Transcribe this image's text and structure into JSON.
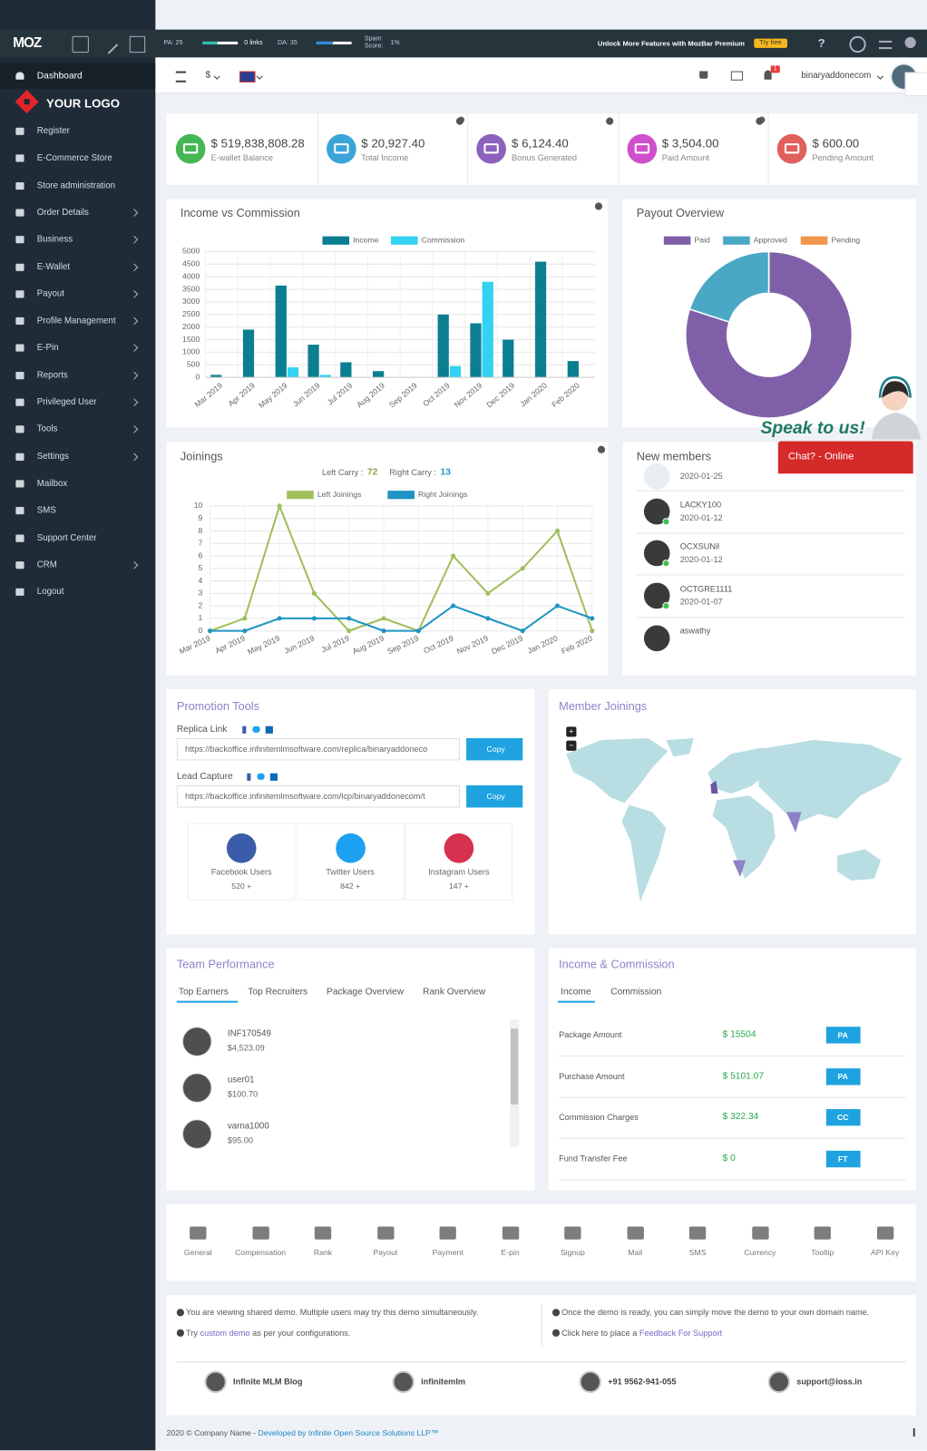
{
  "mozbar": {
    "logo": "MOZ",
    "pa": "PA: 25",
    "links": "0 links",
    "da": "DA: 35",
    "spam_label": "Spam Score:",
    "spam": "1%",
    "promo": "Unlock More Features with MozBar Premium",
    "try_free": "Try free",
    "help": "?"
  },
  "sidebar": {
    "active": "Dashboard",
    "logo": "YOUR LOGO",
    "menu": [
      {
        "label": "Register",
        "sub": false
      },
      {
        "label": "E-Commerce Store",
        "sub": false
      },
      {
        "label": "Store administration",
        "sub": false
      },
      {
        "label": "Order Details",
        "sub": true
      },
      {
        "label": "Business",
        "sub": true
      },
      {
        "label": "E-Wallet",
        "sub": true
      },
      {
        "label": "Payout",
        "sub": true
      },
      {
        "label": "Profile Management",
        "sub": true
      },
      {
        "label": "E-Pin",
        "sub": true
      },
      {
        "label": "Reports",
        "sub": true
      },
      {
        "label": "Privileged User",
        "sub": true
      },
      {
        "label": "Tools",
        "sub": true
      },
      {
        "label": "Settings",
        "sub": true
      },
      {
        "label": "Mailbox",
        "sub": false
      },
      {
        "label": "SMS",
        "sub": false
      },
      {
        "label": "Support Center",
        "sub": false
      },
      {
        "label": "CRM",
        "sub": true
      },
      {
        "label": "Logout",
        "sub": false
      }
    ]
  },
  "topbar": {
    "currency": "$",
    "notifications": "1",
    "user": "binaryaddonecom"
  },
  "stats": [
    {
      "value": "$ 519,838,808.28",
      "label": "E-wallet Balance",
      "color": "#45b653"
    },
    {
      "value": "$ 20,927.40",
      "label": "Total Income",
      "color": "#3aa5d6"
    },
    {
      "value": "$ 6,124.40",
      "label": "Bonus Generated",
      "color": "#8c62bd"
    },
    {
      "value": "$ 3,504.00",
      "label": "Paid Amount",
      "color": "#d04fcc"
    },
    {
      "value": "$ 600.00",
      "label": "Pending Amount",
      "color": "#e0605e"
    }
  ],
  "chart_data": [
    {
      "type": "bar",
      "title": "Income vs Commission",
      "categories": [
        "Mar 2019",
        "Apr 2019",
        "May 2019",
        "Jun 2019",
        "Jul 2019",
        "Aug 2019",
        "Sep 2019",
        "Oct 2019",
        "Nov 2019",
        "Dec 2019",
        "Jan 2020",
        "Feb 2020"
      ],
      "series": [
        {
          "name": "Income",
          "color": "#0b7e91",
          "values": [
            100,
            1900,
            3650,
            1300,
            600,
            250,
            0,
            2500,
            2150,
            1500,
            4600,
            650
          ]
        },
        {
          "name": "Commission",
          "color": "#33d2f2",
          "values": [
            0,
            0,
            400,
            100,
            0,
            0,
            0,
            450,
            3800,
            0,
            0,
            0
          ]
        }
      ],
      "ylim": [
        0,
        5000
      ],
      "yticks": [
        0,
        500,
        1000,
        1500,
        2000,
        2500,
        3000,
        3500,
        4000,
        4500,
        5000
      ],
      "grid": true
    },
    {
      "type": "doughnut",
      "title": "Payout Overview",
      "categories": [
        "Paid",
        "Approved",
        "Pending"
      ],
      "values": [
        80,
        20,
        0
      ],
      "colors": [
        "#7f60a8",
        "#4aa8c5",
        "#f3954a"
      ]
    },
    {
      "type": "line",
      "title": "Joinings",
      "left_carry_label": "Left Carry :",
      "left_carry": 72,
      "right_carry_label": "Right Carry :",
      "right_carry": 13,
      "categories": [
        "Mar 2019",
        "Apr 2019",
        "May 2019",
        "Jun 2019",
        "Jul 2019",
        "Aug 2019",
        "Sep 2019",
        "Oct 2019",
        "Nov 2019",
        "Dec 2019",
        "Jan 2020",
        "Feb 2020"
      ],
      "series": [
        {
          "name": "Left Joinings",
          "color": "#9fbf5a",
          "values": [
            0,
            1,
            10,
            3,
            0,
            1,
            0,
            6,
            3,
            5,
            8,
            0
          ]
        },
        {
          "name": "Right Joinings",
          "color": "#1f94c4",
          "values": [
            0,
            0,
            1,
            1,
            1,
            0,
            0,
            2,
            1,
            0,
            2,
            1
          ]
        }
      ],
      "ylim": [
        0,
        10
      ],
      "yticks": [
        0,
        1,
        2,
        3,
        4,
        5,
        6,
        7,
        8,
        9,
        10
      ],
      "grid": true
    }
  ],
  "new_members": {
    "title": "New members",
    "members": [
      {
        "date": "2020-01-25"
      },
      {
        "name": "LACKY100",
        "date": "2020-01-12"
      },
      {
        "name": "OCXSUNil",
        "date": "2020-01-12"
      },
      {
        "name": "OCTGRE1111",
        "date": "2020-01-07"
      },
      {
        "name": "aswathy"
      }
    ]
  },
  "chat": {
    "speak": "Speak to us!",
    "button": "Chat? - Online"
  },
  "promotion": {
    "title": "Promotion Tools",
    "links": [
      {
        "label": "Replica Link",
        "url": "https://backoffice.infinitemlmsoftware.com/replica/binaryaddoneco",
        "button": "Copy"
      },
      {
        "label": "Lead Capture",
        "url": "https://backoffice.infinitemlmsoftware.com/lcp/binaryaddonecom/t",
        "button": "Copy"
      }
    ],
    "social": [
      {
        "label": "Facebook Users",
        "count": "520 +",
        "color": "#3b5ca8"
      },
      {
        "label": "Twitter Users",
        "count": "842 +",
        "color": "#1da1f2"
      },
      {
        "label": "Instagram Users",
        "count": "147 +",
        "color": "#d8304f"
      }
    ]
  },
  "member_joinings": {
    "title": "Member Joinings",
    "zoom_in": "+",
    "zoom_out": "−"
  },
  "team_performance": {
    "title": "Team Performance",
    "tabs": [
      "Top Earners",
      "Top Recruiters",
      "Package Overview",
      "Rank Overview"
    ],
    "earners": [
      {
        "name": "INF170549",
        "amount": "$4,523.09"
      },
      {
        "name": "user01",
        "amount": "$100.70"
      },
      {
        "name": "varna1000",
        "amount": "$95.00"
      }
    ]
  },
  "income_commission": {
    "title": "Income & Commission",
    "tabs": [
      "Income",
      "Commission"
    ],
    "rows": [
      {
        "label": "Package Amount",
        "value": "$ 15504",
        "badge": "PA"
      },
      {
        "label": "Purchase Amount",
        "value": "$ 5101.07",
        "badge": "PA"
      },
      {
        "label": "Commission Charges",
        "value": "$ 322.34",
        "badge": "CC"
      },
      {
        "label": "Fund Transfer Fee",
        "value": "$ 0",
        "badge": "FT"
      }
    ]
  },
  "settings_icons": [
    "General",
    "Compensation",
    "Rank",
    "Payout",
    "Payment",
    "E-pin",
    "Signup",
    "Mail",
    "SMS",
    "Currency",
    "Tooltip",
    "API Key"
  ],
  "info": {
    "left1": "You are viewing shared demo. Multiple users may try this demo simultaneously.",
    "left2_a": "Try ",
    "left2_link": "custom demo",
    "left2_b": " as per your configurations.",
    "right1": "Once the demo is ready, you can simply move the demo to your own domain name.",
    "right2_a": "Click here to place a ",
    "right2_link": "Feedback For Support"
  },
  "contacts": [
    "Infinite MLM Blog",
    "infinitemlm",
    "+91 9562-941-055",
    "support@ioss.in"
  ],
  "footer": {
    "copyright": "2020 © Company Name - ",
    "developer": "Developed by Infinite Open Source Solutions LLP™"
  }
}
